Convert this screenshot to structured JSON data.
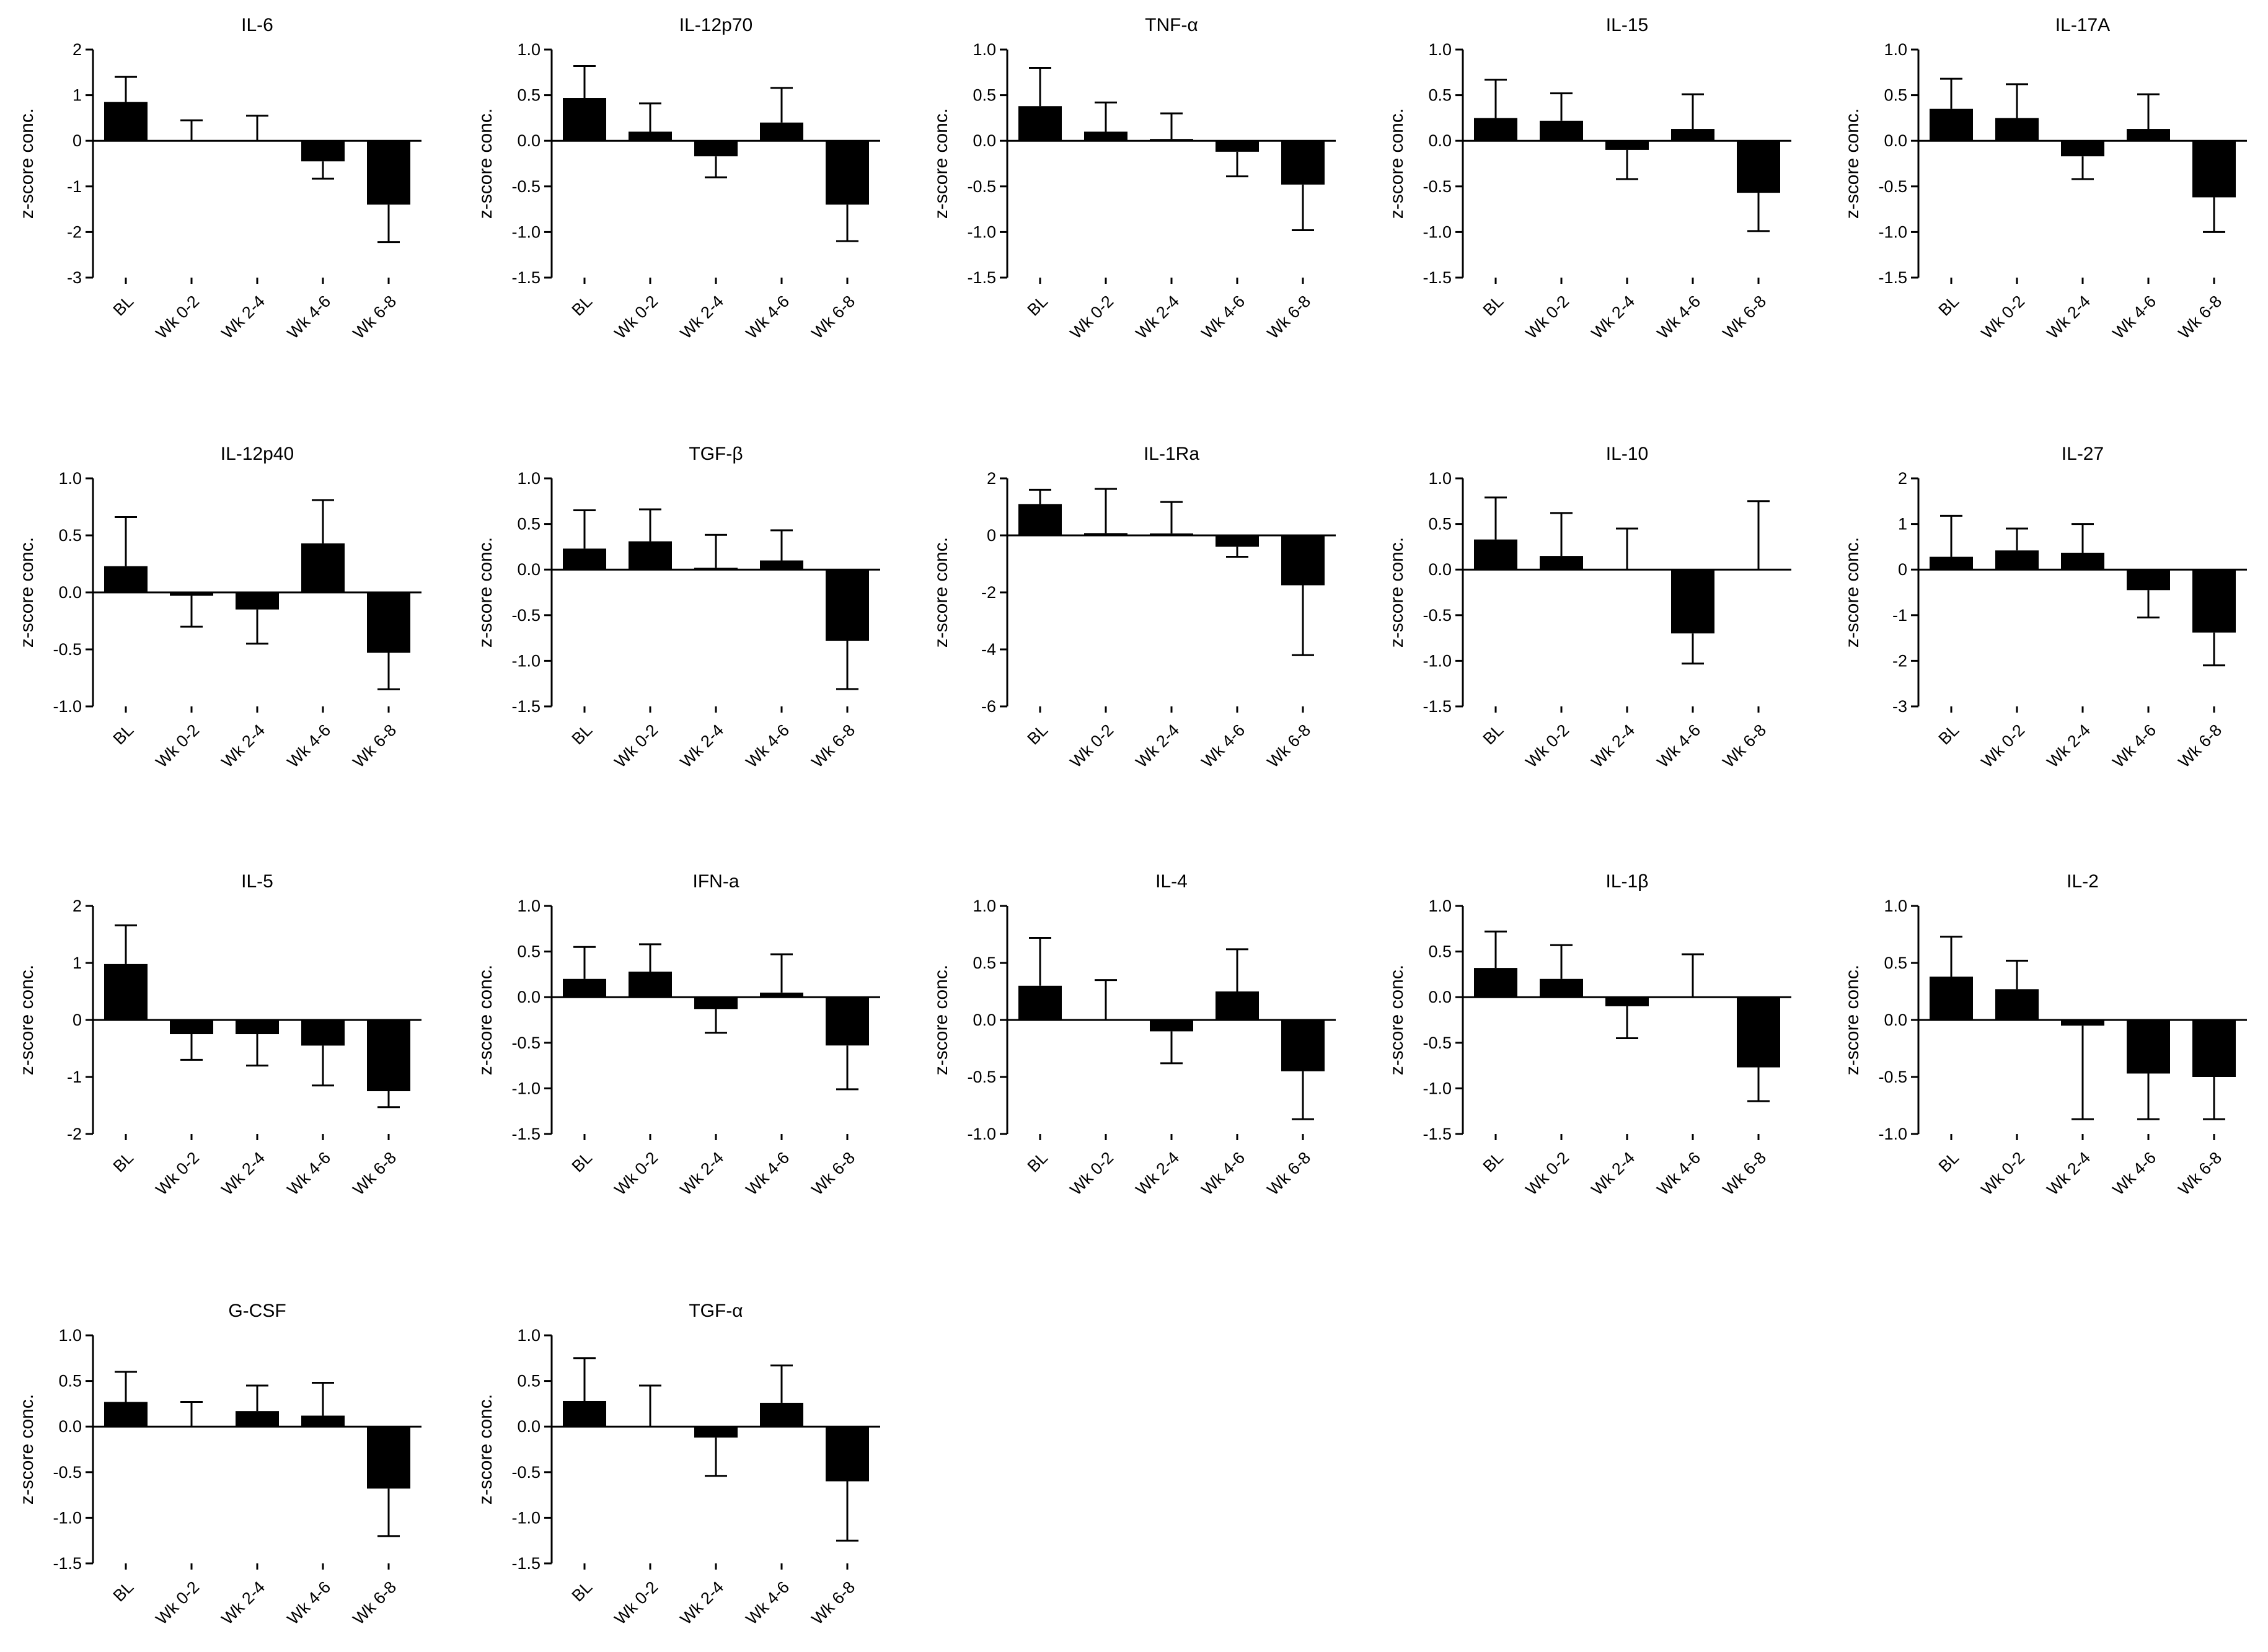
{
  "chart_data": [
    {
      "type": "bar",
      "title": "IL-6",
      "ylabel": "z-score conc.",
      "ylim": [
        -3,
        2
      ],
      "yticks": [
        2,
        1,
        0,
        -1,
        -2,
        -3
      ],
      "ytick_labels": [
        "2",
        "1",
        "0",
        "-1",
        "-2",
        "-3"
      ],
      "categories": [
        "BL",
        "Wk 0-2",
        "Wk 2-4",
        "Wk 4-6",
        "Wk 6-8"
      ],
      "values": [
        0.85,
        0.0,
        0.0,
        -0.45,
        -1.4
      ],
      "errors": [
        0.55,
        0.45,
        0.55,
        0.38,
        0.82
      ]
    },
    {
      "type": "bar",
      "title": "IL-12p70",
      "ylabel": "z-score conc.",
      "ylim": [
        -1.5,
        1.0
      ],
      "yticks": [
        1.0,
        0.5,
        0.0,
        -0.5,
        -1.0,
        -1.5
      ],
      "ytick_labels": [
        "1.0",
        "0.5",
        "0.0",
        "-0.5",
        "-1.0",
        "-1.5"
      ],
      "categories": [
        "BL",
        "Wk 0-2",
        "Wk 2-4",
        "Wk 4-6",
        "Wk 6-8"
      ],
      "values": [
        0.47,
        0.1,
        -0.17,
        0.2,
        -0.7
      ],
      "errors": [
        0.35,
        0.31,
        0.23,
        0.38,
        0.4
      ]
    },
    {
      "type": "bar",
      "title": "TNF-α",
      "ylabel": "z-score conc.",
      "ylim": [
        -1.5,
        1.0
      ],
      "yticks": [
        1.0,
        0.5,
        0.0,
        -0.5,
        -1.0,
        -1.5
      ],
      "ytick_labels": [
        "1.0",
        "0.5",
        "0.0",
        "-0.5",
        "-1.0",
        "-1.5"
      ],
      "categories": [
        "BL",
        "Wk 0-2",
        "Wk 2-4",
        "Wk 4-6",
        "Wk 6-8"
      ],
      "values": [
        0.38,
        0.1,
        0.02,
        -0.12,
        -0.48
      ],
      "errors": [
        0.42,
        0.32,
        0.28,
        0.27,
        0.5
      ]
    },
    {
      "type": "bar",
      "title": "IL-15",
      "ylabel": "z-score conc.",
      "ylim": [
        -1.5,
        1.0
      ],
      "yticks": [
        1.0,
        0.5,
        0.0,
        -0.5,
        -1.0,
        -1.5
      ],
      "ytick_labels": [
        "1.0",
        "0.5",
        "0.0",
        "-0.5",
        "-1.0",
        "-1.5"
      ],
      "categories": [
        "BL",
        "Wk 0-2",
        "Wk 2-4",
        "Wk 4-6",
        "Wk 6-8"
      ],
      "values": [
        0.25,
        0.22,
        -0.1,
        0.13,
        -0.57
      ],
      "errors": [
        0.42,
        0.3,
        0.32,
        0.38,
        0.42
      ]
    },
    {
      "type": "bar",
      "title": "IL-17A",
      "ylabel": "z-score conc.",
      "ylim": [
        -1.5,
        1.0
      ],
      "yticks": [
        1.0,
        0.5,
        0.0,
        -0.5,
        -1.0,
        -1.5
      ],
      "ytick_labels": [
        "1.0",
        "0.5",
        "0.0",
        "-0.5",
        "-1.0",
        "-1.5"
      ],
      "categories": [
        "BL",
        "Wk 0-2",
        "Wk 2-4",
        "Wk 4-6",
        "Wk 6-8"
      ],
      "values": [
        0.35,
        0.25,
        -0.17,
        0.13,
        -0.62
      ],
      "errors": [
        0.33,
        0.37,
        0.25,
        0.38,
        0.38
      ]
    },
    {
      "type": "bar",
      "title": "IL-12p40",
      "ylabel": "z-score conc.",
      "ylim": [
        -1.0,
        1.0
      ],
      "yticks": [
        1.0,
        0.5,
        0.0,
        -0.5,
        -1.0
      ],
      "ytick_labels": [
        "1.0",
        "0.5",
        "0.0",
        "-0.5",
        "-1.0"
      ],
      "categories": [
        "BL",
        "Wk 0-2",
        "Wk 2-4",
        "Wk 4-6",
        "Wk 6-8"
      ],
      "values": [
        0.23,
        -0.03,
        -0.15,
        0.43,
        -0.53
      ],
      "errors": [
        0.43,
        0.27,
        0.3,
        0.38,
        0.32
      ]
    },
    {
      "type": "bar",
      "title": "TGF-β",
      "ylabel": "z-score conc.",
      "ylim": [
        -1.5,
        1.0
      ],
      "yticks": [
        1.0,
        0.5,
        0.0,
        -0.5,
        -1.0,
        -1.5
      ],
      "ytick_labels": [
        "1.0",
        "0.5",
        "0.0",
        "-0.5",
        "-1.0",
        "-1.5"
      ],
      "categories": [
        "BL",
        "Wk 0-2",
        "Wk 2-4",
        "Wk 4-6",
        "Wk 6-8"
      ],
      "values": [
        0.23,
        0.31,
        0.02,
        0.1,
        -0.78
      ],
      "errors": [
        0.42,
        0.35,
        0.36,
        0.33,
        0.53
      ]
    },
    {
      "type": "bar",
      "title": "IL-1Ra",
      "ylabel": "z-score conc.",
      "ylim": [
        -6,
        2
      ],
      "yticks": [
        2,
        0,
        -2,
        -4,
        -6
      ],
      "ytick_labels": [
        "2",
        "0",
        "-2",
        "-4",
        "-6"
      ],
      "categories": [
        "BL",
        "Wk 0-2",
        "Wk 2-4",
        "Wk 4-6",
        "Wk 6-8"
      ],
      "values": [
        1.1,
        0.08,
        0.07,
        -0.4,
        -1.75
      ],
      "errors": [
        0.5,
        1.55,
        1.1,
        0.35,
        2.45
      ]
    },
    {
      "type": "bar",
      "title": "IL-10",
      "ylabel": "z-score conc.",
      "ylim": [
        -1.5,
        1.0
      ],
      "yticks": [
        1.0,
        0.5,
        0.0,
        -0.5,
        -1.0,
        -1.5
      ],
      "ytick_labels": [
        "1.0",
        "0.5",
        "0.0",
        "-0.5",
        "-1.0",
        "-1.5"
      ],
      "categories": [
        "BL",
        "Wk 0-2",
        "Wk 2-4",
        "Wk 4-6",
        "Wk 6-8"
      ],
      "values": [
        0.33,
        0.15,
        0.0,
        -0.7,
        0.0
      ],
      "errors": [
        0.46,
        0.47,
        0.45,
        0.33,
        0.75
      ]
    },
    {
      "type": "bar",
      "title": "IL-27",
      "ylabel": "z-score conc.",
      "ylim": [
        -3,
        2
      ],
      "yticks": [
        2,
        1,
        0,
        -1,
        -2,
        -3
      ],
      "ytick_labels": [
        "2",
        "1",
        "0",
        "-1",
        "-2",
        "-3"
      ],
      "categories": [
        "BL",
        "Wk 0-2",
        "Wk 2-4",
        "Wk 4-6",
        "Wk 6-8"
      ],
      "values": [
        0.28,
        0.42,
        0.37,
        -0.45,
        -1.38
      ],
      "errors": [
        0.9,
        0.48,
        0.63,
        0.6,
        0.72
      ]
    },
    {
      "type": "bar",
      "title": "IL-5",
      "ylabel": "z-score conc.",
      "ylim": [
        -2,
        2
      ],
      "yticks": [
        2,
        1,
        0,
        -1,
        -2
      ],
      "ytick_labels": [
        "2",
        "1",
        "0",
        "-1",
        "-2"
      ],
      "categories": [
        "BL",
        "Wk 0-2",
        "Wk 2-4",
        "Wk 4-6",
        "Wk 6-8"
      ],
      "values": [
        0.98,
        -0.25,
        -0.25,
        -0.45,
        -1.25
      ],
      "errors": [
        0.68,
        0.45,
        0.55,
        0.7,
        0.28
      ]
    },
    {
      "type": "bar",
      "title": "IFN-a",
      "ylabel": "z-score conc.",
      "ylim": [
        -1.5,
        1.0
      ],
      "yticks": [
        1.0,
        0.5,
        0.0,
        -0.5,
        -1.0,
        -1.5
      ],
      "ytick_labels": [
        "1.0",
        "0.5",
        "0.0",
        "-0.5",
        "-1.0",
        "-1.5"
      ],
      "categories": [
        "BL",
        "Wk 0-2",
        "Wk 2-4",
        "Wk 4-6",
        "Wk 6-8"
      ],
      "values": [
        0.2,
        0.28,
        -0.13,
        0.05,
        -0.53
      ],
      "errors": [
        0.35,
        0.3,
        0.26,
        0.42,
        0.48
      ]
    },
    {
      "type": "bar",
      "title": "IL-4",
      "ylabel": "z-score conc.",
      "ylim": [
        -1.0,
        1.0
      ],
      "yticks": [
        1.0,
        0.5,
        0.0,
        -0.5,
        -1.0
      ],
      "ytick_labels": [
        "1.0",
        "0.5",
        "0.0",
        "-0.5",
        "-1.0"
      ],
      "categories": [
        "BL",
        "Wk 0-2",
        "Wk 2-4",
        "Wk 4-6",
        "Wk 6-8"
      ],
      "values": [
        0.3,
        0.0,
        -0.1,
        0.25,
        -0.45
      ],
      "errors": [
        0.42,
        0.35,
        0.28,
        0.37,
        0.42
      ]
    },
    {
      "type": "bar",
      "title": "IL-1β",
      "ylabel": "z-score conc.",
      "ylim": [
        -1.5,
        1.0
      ],
      "yticks": [
        1.0,
        0.5,
        0.0,
        -0.5,
        -1.0,
        -1.5
      ],
      "ytick_labels": [
        "1.0",
        "0.5",
        "0.0",
        "-0.5",
        "-1.0",
        "-1.5"
      ],
      "categories": [
        "BL",
        "Wk 0-2",
        "Wk 2-4",
        "Wk 4-6",
        "Wk 6-8"
      ],
      "values": [
        0.32,
        0.2,
        -0.1,
        0.0,
        -0.77
      ],
      "errors": [
        0.4,
        0.37,
        0.35,
        0.47,
        0.37
      ]
    },
    {
      "type": "bar",
      "title": "IL-2",
      "ylabel": "z-score conc.",
      "ylim": [
        -1.0,
        1.0
      ],
      "yticks": [
        1.0,
        0.5,
        0.0,
        -0.5,
        -1.0
      ],
      "ytick_labels": [
        "1.0",
        "0.5",
        "0.0",
        "-0.5",
        "-1.0"
      ],
      "categories": [
        "BL",
        "Wk 0-2",
        "Wk 2-4",
        "Wk 4-6",
        "Wk 6-8"
      ],
      "values": [
        0.38,
        0.27,
        -0.05,
        -0.47,
        -0.5
      ],
      "errors": [
        0.35,
        0.25,
        0.82,
        0.4,
        0.37
      ]
    },
    {
      "type": "bar",
      "title": "G-CSF",
      "ylabel": "z-score conc.",
      "ylim": [
        -1.5,
        1.0
      ],
      "yticks": [
        1.0,
        0.5,
        0.0,
        -0.5,
        -1.0,
        -1.5
      ],
      "ytick_labels": [
        "1.0",
        "0.5",
        "0.0",
        "-0.5",
        "-1.0",
        "-1.5"
      ],
      "categories": [
        "BL",
        "Wk 0-2",
        "Wk 2-4",
        "Wk 4-6",
        "Wk 6-8"
      ],
      "values": [
        0.27,
        0.0,
        0.17,
        0.12,
        -0.68
      ],
      "errors": [
        0.33,
        0.27,
        0.28,
        0.36,
        0.52
      ]
    },
    {
      "type": "bar",
      "title": "TGF-α",
      "ylabel": "z-score conc.",
      "ylim": [
        -1.5,
        1.0
      ],
      "yticks": [
        1.0,
        0.5,
        0.0,
        -0.5,
        -1.0,
        -1.5
      ],
      "ytick_labels": [
        "1.0",
        "0.5",
        "0.0",
        "-0.5",
        "-1.0",
        "-1.5"
      ],
      "categories": [
        "BL",
        "Wk 0-2",
        "Wk 2-4",
        "Wk 4-6",
        "Wk 6-8"
      ],
      "values": [
        0.28,
        0.0,
        -0.12,
        0.26,
        -0.6
      ],
      "errors": [
        0.47,
        0.45,
        0.42,
        0.41,
        0.65
      ]
    }
  ]
}
